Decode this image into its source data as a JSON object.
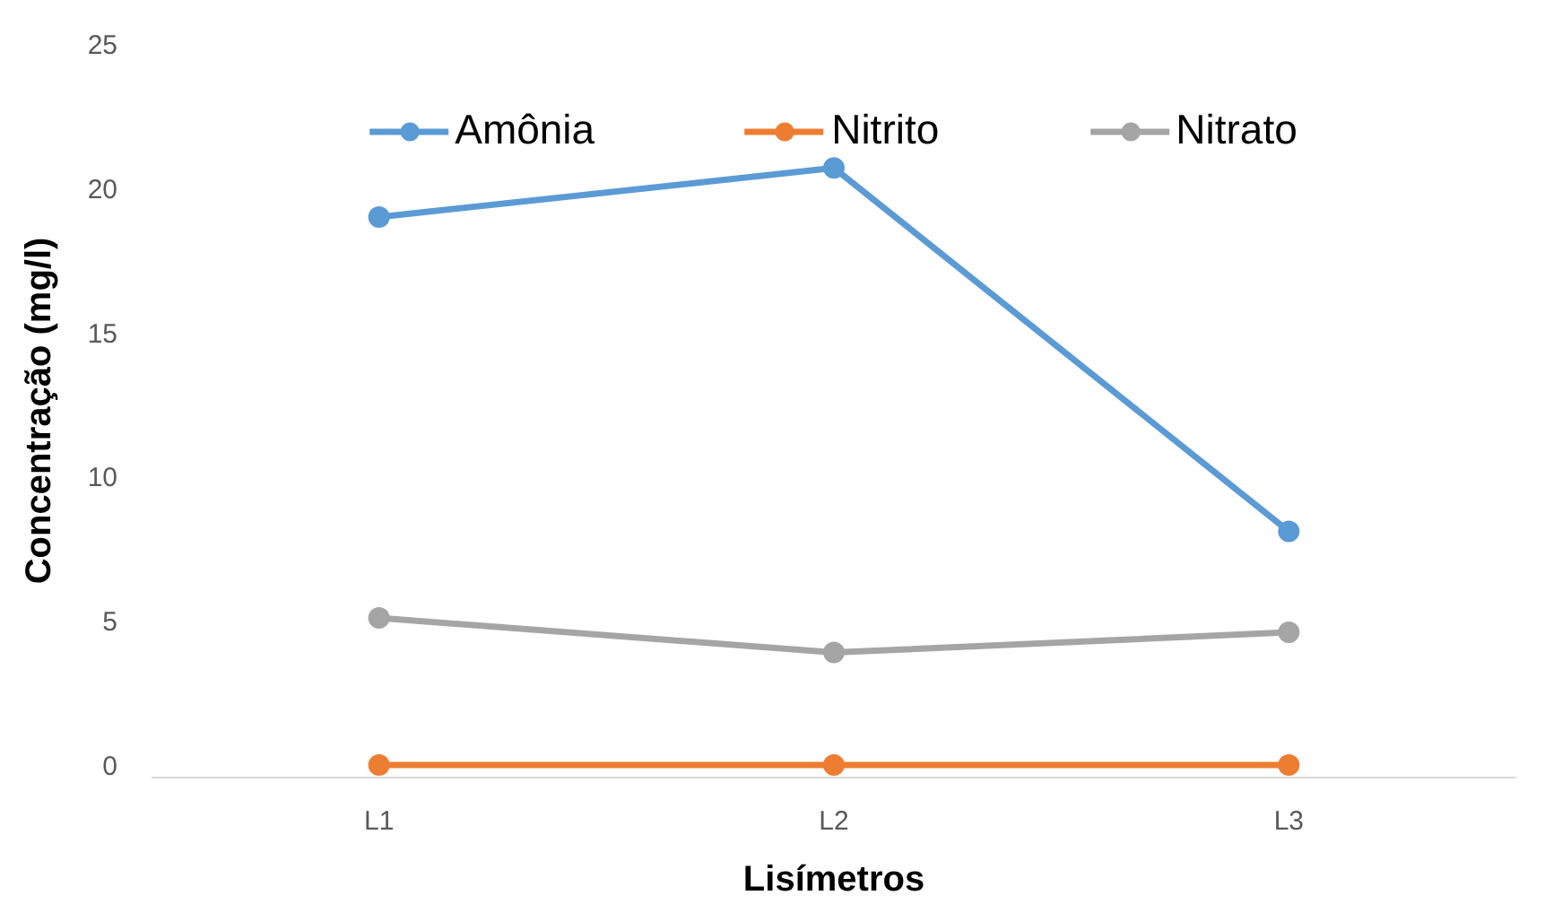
{
  "chart_data": {
    "type": "line",
    "xlabel": "Lisímetros",
    "ylabel": "Concentração (mg/l)",
    "categories": [
      "L1",
      "L2",
      "L3"
    ],
    "series": [
      {
        "name": "Amônia",
        "color": "#5b9bd5",
        "values": [
          19.0,
          20.7,
          8.1
        ]
      },
      {
        "name": "Nitrito",
        "color": "#ed7d31",
        "values": [
          0,
          0,
          0
        ]
      },
      {
        "name": "Nitrato",
        "color": "#a5a5a5",
        "values": [
          5.1,
          3.9,
          4.6
        ]
      }
    ],
    "ylim": [
      0,
      25
    ],
    "yticks": [
      0,
      5,
      10,
      15,
      20,
      25
    ],
    "grid": false,
    "legend": "top",
    "marker": "circle",
    "line_style": "solid"
  }
}
